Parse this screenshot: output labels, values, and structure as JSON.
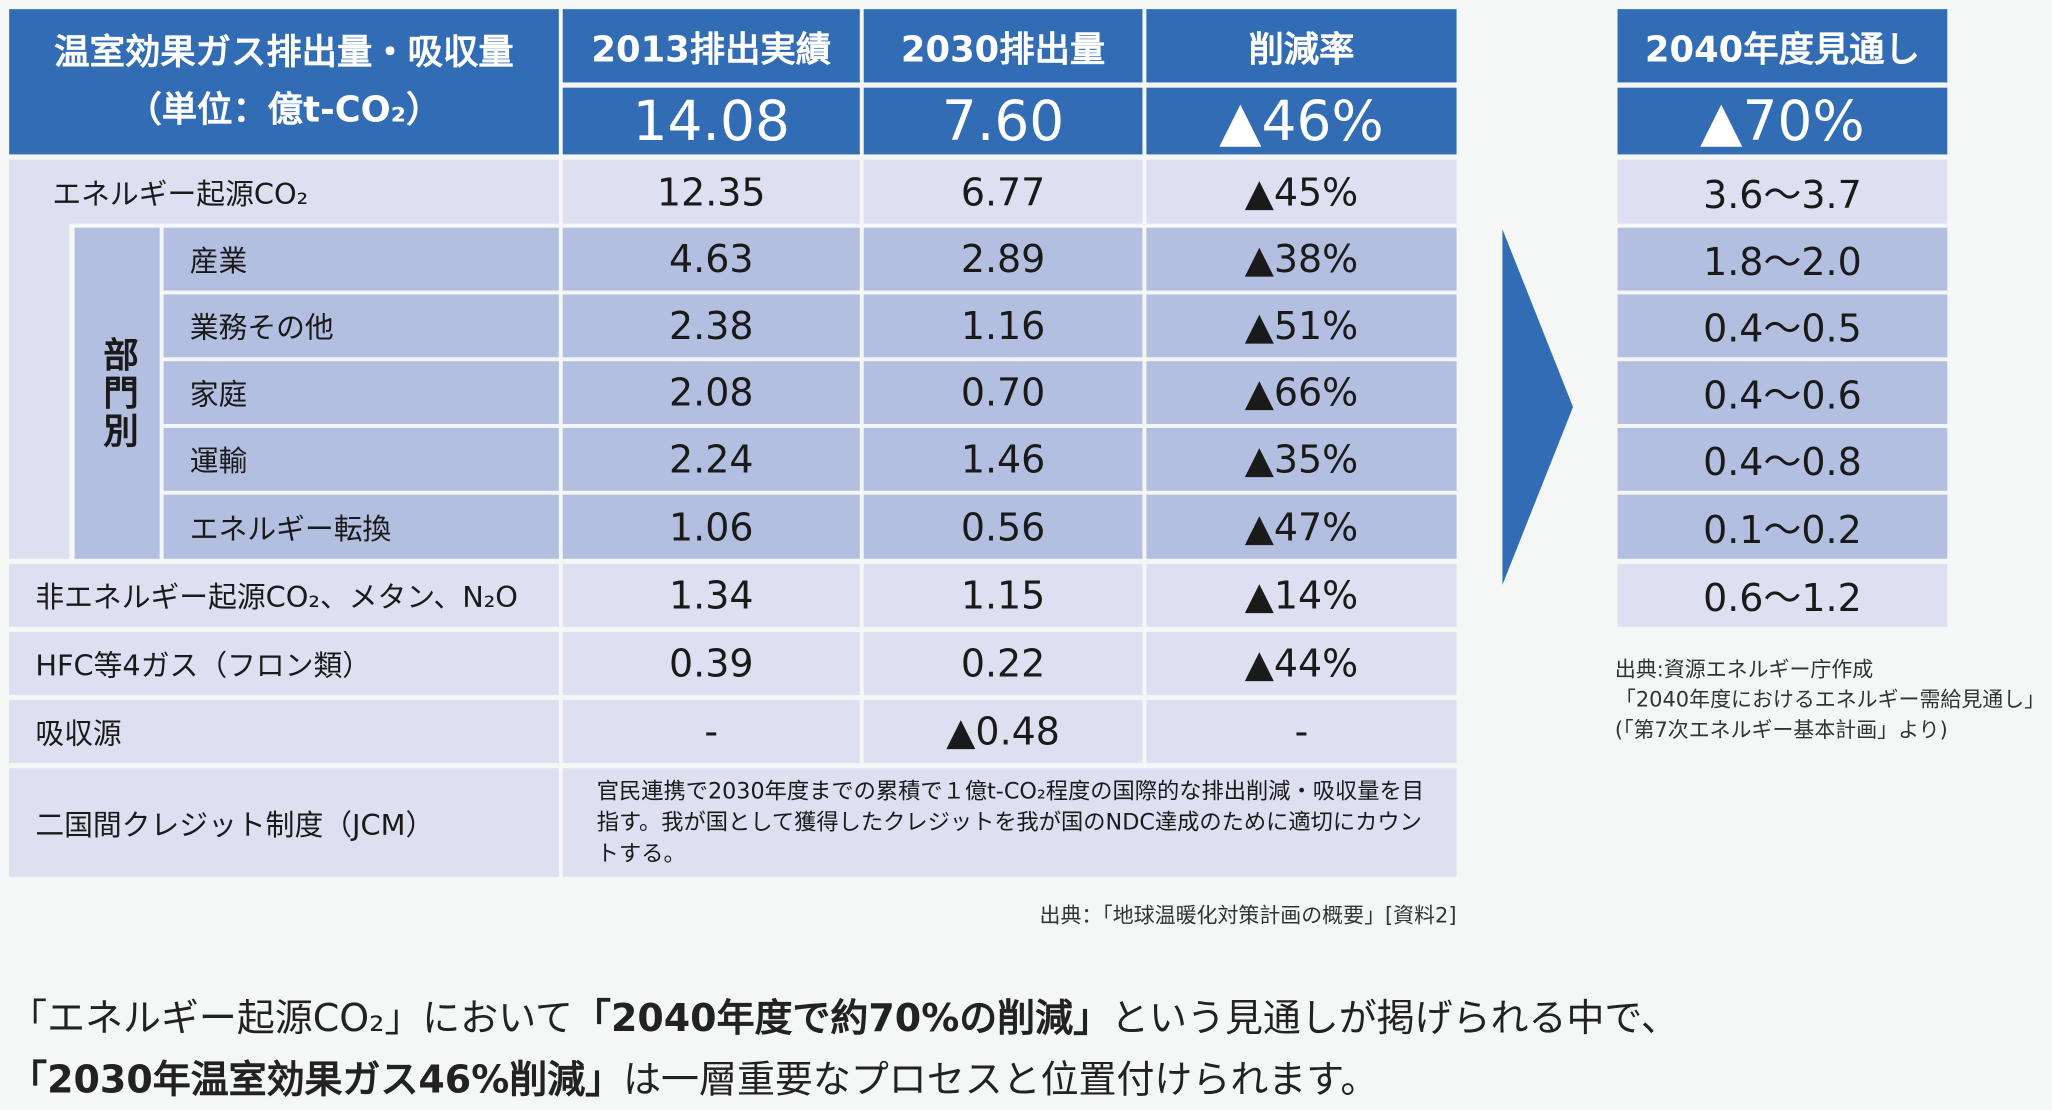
{
  "header": {
    "title_line1": "温室効果ガス排出量・吸収量",
    "title_line2": "（単位：億t-CO₂）",
    "col_2013": "2013排出実績",
    "col_2030": "2030排出量",
    "col_rate": "削減率",
    "total_2013": "14.08",
    "total_2030": "7.60",
    "total_rate": "▲46%"
  },
  "sector_group_label": "部門別",
  "rows": [
    {
      "label": "エネルギー起源CO₂",
      "v2013": "12.35",
      "v2030": "6.77",
      "rate": "▲45%"
    },
    {
      "label": "産業",
      "v2013": "4.63",
      "v2030": "2.89",
      "rate": "▲38%"
    },
    {
      "label": "業務その他",
      "v2013": "2.38",
      "v2030": "1.16",
      "rate": "▲51%"
    },
    {
      "label": "家庭",
      "v2013": "2.08",
      "v2030": "0.70",
      "rate": "▲66%"
    },
    {
      "label": "運輸",
      "v2013": "2.24",
      "v2030": "1.46",
      "rate": "▲35%"
    },
    {
      "label": "エネルギー転換",
      "v2013": "1.06",
      "v2030": "0.56",
      "rate": "▲47%"
    },
    {
      "label": "非エネルギー起源CO₂、メタン、N₂O",
      "v2013": "1.34",
      "v2030": "1.15",
      "rate": "▲14%"
    },
    {
      "label": "HFC等4ガス（フロン類）",
      "v2013": "0.39",
      "v2030": "0.22",
      "rate": "▲44%"
    },
    {
      "label": "吸収源",
      "v2013": "-",
      "v2030": "▲0.48",
      "rate": "-"
    }
  ],
  "jcm": {
    "label": "二国間クレジット制度（JCM）",
    "note": "官民連携で2030年度までの累積で１億t-CO₂程度の国際的な排出削減・吸収量を目指す。我が国として獲得したクレジットを我が国のNDC達成のために適切にカウントする。"
  },
  "source_main": "出典：「地球温暖化対策計画の概要」[資料2]",
  "outlook": {
    "title": "2040年度見通し",
    "total": "▲70%",
    "values": [
      "3.6〜3.7",
      "1.8〜2.0",
      "0.4〜0.5",
      "0.4〜0.6",
      "0.4〜0.8",
      "0.1〜0.2",
      "0.6〜1.2"
    ],
    "source_line1": "出典:資源エネルギー庁作成",
    "source_line2": "「2040年度におけるエネルギー需給見通し」",
    "source_line3": "(「第7次エネルギー基本計画」より)"
  },
  "footer": {
    "line1_a": "「エネルギー起源CO₂」において",
    "line1_b": "「2040年度で約70%の削減」",
    "line1_c": "という見通しが掲げられる中で、",
    "line2_a": "「2030年温室効果ガス46%削減」",
    "line2_b": "は一層重要なプロセスと位置付けられます。"
  },
  "colors": {
    "header_blue": "#326cb5",
    "light": "#dce0f0",
    "medium": "#b3bfe0"
  }
}
